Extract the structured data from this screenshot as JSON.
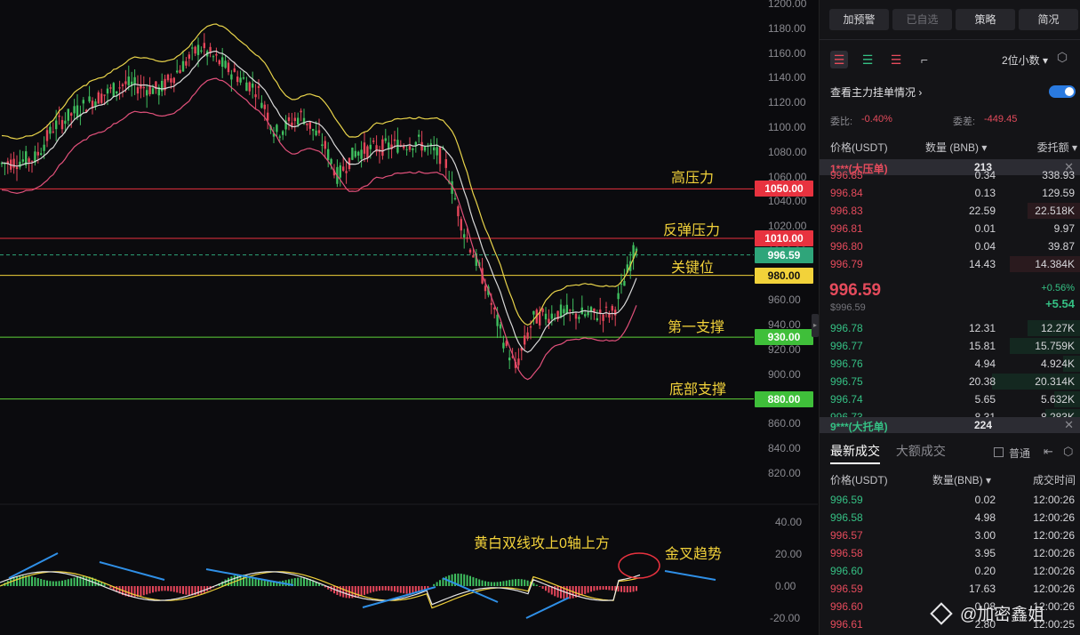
{
  "chart": {
    "y_ticks": [
      "1200.00",
      "1180.00",
      "1160.00",
      "1140.00",
      "1120.00",
      "1100.00",
      "1080.00",
      "1060.00",
      "1040.00",
      "1020.00",
      "1000.00",
      "980.00",
      "960.00",
      "940.00",
      "920.00",
      "900.00",
      "880.00",
      "860.00",
      "840.00",
      "820.00"
    ],
    "macd_ticks": [
      "40.00",
      "20.00",
      "0.00",
      "-20.00"
    ],
    "levels": [
      {
        "price": "1050.00",
        "annotation": "高压力",
        "color": "#e8323f",
        "label_bg": "#e8323f",
        "label_fg": "#ffffff"
      },
      {
        "price": "1010.00",
        "annotation": "反弹压力",
        "color": "#e8323f",
        "label_bg": "#e8323f",
        "label_fg": "#ffffff"
      },
      {
        "price": "980.00",
        "annotation": "关键位",
        "color": "#f2d23a",
        "label_bg": "#f2d23a",
        "label_fg": "#111111"
      },
      {
        "price": "930.00",
        "annotation": "第一支撑",
        "color": "#61d43a",
        "label_bg": "#3fbf3a",
        "label_fg": "#ffffff"
      },
      {
        "price": "880.00",
        "annotation": "底部支撑",
        "color": "#61d43a",
        "label_bg": "#3fbf3a",
        "label_fg": "#ffffff"
      }
    ],
    "current_price": "996.59",
    "current_price_color": "#2fa57a",
    "macd_annotation_1": "黄白双线攻上0轴上方",
    "macd_annotation_2": "金叉趋势"
  },
  "panel": {
    "top_buttons": [
      "加预警",
      "已自选",
      "策略",
      "简况"
    ],
    "decimals": "2位小数 ▾",
    "mainforce_label": "查看主力挂单情况",
    "ratio_label": "委比:",
    "ratio_value": "-0.40%",
    "diff_label": "委差:",
    "diff_value": "-449.45",
    "ob_cols": [
      "价格(USDT)",
      "数量 (BNB) ▾",
      "委托额 ▾"
    ],
    "sell_bar": {
      "label": "1***(大压单)",
      "qty": "213"
    },
    "asks": [
      {
        "p": "996.85",
        "q": "0.34",
        "t": "338.93"
      },
      {
        "p": "996.84",
        "q": "0.13",
        "t": "129.59"
      },
      {
        "p": "996.83",
        "q": "22.59",
        "t": "22.518K"
      },
      {
        "p": "996.81",
        "q": "0.01",
        "t": "9.97"
      },
      {
        "p": "996.80",
        "q": "0.04",
        "t": "39.87"
      },
      {
        "p": "996.79",
        "q": "14.43",
        "t": "14.384K"
      }
    ],
    "mid_price": "996.59",
    "mid_sub": "$996.59",
    "mid_pct": "+0.56%",
    "mid_chg": "+5.54",
    "bids": [
      {
        "p": "996.78",
        "q": "12.31",
        "t": "12.27K"
      },
      {
        "p": "996.77",
        "q": "15.81",
        "t": "15.759K"
      },
      {
        "p": "996.76",
        "q": "4.94",
        "t": "4.924K"
      },
      {
        "p": "996.75",
        "q": "20.38",
        "t": "20.314K"
      },
      {
        "p": "996.74",
        "q": "5.65",
        "t": "5.632K"
      },
      {
        "p": "996.73",
        "q": "8.31",
        "t": "8.283K"
      }
    ],
    "buy_bar": {
      "label": "9***(大托单)",
      "qty": "224"
    },
    "trade_tab_1": "最新成交",
    "trade_tab_2": "大额成交",
    "checkbox_label": "普通",
    "trade_cols": [
      "价格(USDT)",
      "数量(BNB) ▾",
      "成交时间"
    ],
    "trades": [
      {
        "p": "996.59",
        "c": "green",
        "q": "0.02",
        "t": "12:00:26"
      },
      {
        "p": "996.58",
        "c": "green",
        "q": "4.98",
        "t": "12:00:26"
      },
      {
        "p": "996.57",
        "c": "red",
        "q": "3.00",
        "t": "12:00:26"
      },
      {
        "p": "996.58",
        "c": "red",
        "q": "3.95",
        "t": "12:00:26"
      },
      {
        "p": "996.60",
        "c": "green",
        "q": "0.20",
        "t": "12:00:26"
      },
      {
        "p": "996.59",
        "c": "red",
        "q": "17.63",
        "t": "12:00:26"
      },
      {
        "p": "996.60",
        "c": "red",
        "q": "0.08",
        "t": "12:00:26"
      },
      {
        "p": "996.61",
        "c": "red",
        "q": "2.80",
        "t": "12:00:25"
      }
    ],
    "watermark": "@加密鑫姐"
  }
}
